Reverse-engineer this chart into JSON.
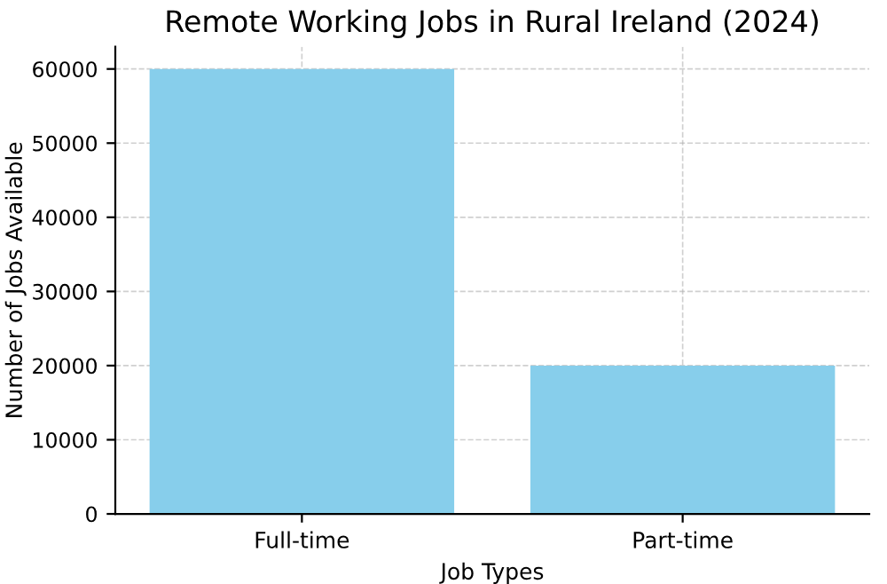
{
  "chart_data": {
    "type": "bar",
    "title": "Remote Working Jobs in Rural Ireland (2024)",
    "xlabel": "Job Types",
    "ylabel": "Number of Jobs Available",
    "categories": [
      "Full-time",
      "Part-time"
    ],
    "values": [
      60000,
      20000
    ],
    "color": "#87ceeb",
    "ylim": [
      0,
      63000
    ],
    "yticks": [
      0,
      10000,
      20000,
      30000,
      40000,
      50000,
      60000
    ],
    "grid": true,
    "line_style": "dashed"
  }
}
